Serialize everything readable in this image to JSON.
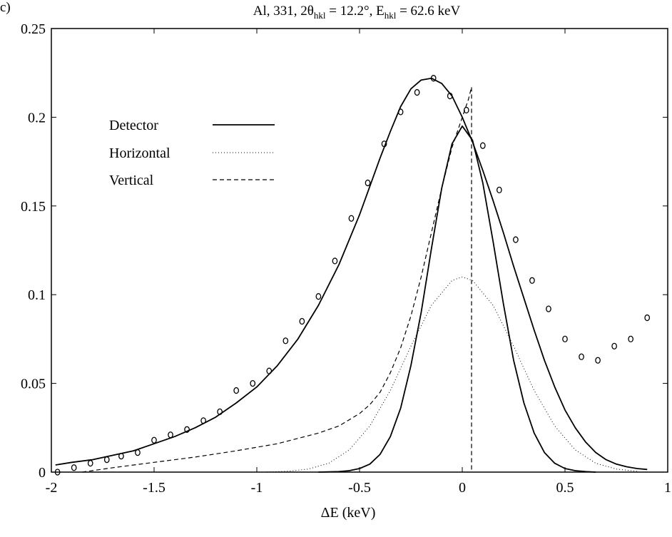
{
  "chart_data": {
    "type": "line",
    "panel_label": "c)",
    "title": {
      "prefix": "Al, 331, 2θ",
      "theta_sub": "hkl",
      "middle": " = 12.2°, E",
      "energy_sub": "hkl",
      "suffix": " = 62.6 keV"
    },
    "xlabel": "ΔE (keV)",
    "ylabel": "",
    "xlim": [
      -2,
      1
    ],
    "ylim": [
      0,
      0.25
    ],
    "xticks": [
      -2,
      -1.5,
      -1,
      -0.5,
      0,
      0.5,
      1
    ],
    "xtick_labels": [
      "-2",
      "-1.5",
      "-1",
      "-0.5",
      "0",
      "0.5",
      "1"
    ],
    "yticks": [
      0,
      0.05,
      0.1,
      0.15,
      0.2,
      0.25
    ],
    "ytick_labels": [
      "0",
      "0.05",
      "0.1",
      "0.15",
      "0.2",
      "0.25"
    ],
    "legend": {
      "position": "upper-left",
      "entries": [
        {
          "label": "Detector",
          "style": "solid"
        },
        {
          "label": "Horizontal",
          "style": "dotted"
        },
        {
          "label": "Vertical",
          "style": "dashed"
        }
      ]
    },
    "series": [
      {
        "name": "",
        "kind": "model-fit",
        "style": "solid",
        "x": [
          -1.98,
          -1.9,
          -1.8,
          -1.7,
          -1.6,
          -1.5,
          -1.4,
          -1.3,
          -1.2,
          -1.1,
          -1.0,
          -0.9,
          -0.8,
          -0.7,
          -0.6,
          -0.5,
          -0.45,
          -0.4,
          -0.35,
          -0.3,
          -0.25,
          -0.2,
          -0.15,
          -0.1,
          -0.05,
          0.0,
          0.05,
          0.1,
          0.15,
          0.2,
          0.25,
          0.3,
          0.35,
          0.4,
          0.45,
          0.5,
          0.55,
          0.6,
          0.65,
          0.7,
          0.75,
          0.8,
          0.85,
          0.9
        ],
        "y": [
          0.004,
          0.0055,
          0.007,
          0.0095,
          0.012,
          0.016,
          0.02,
          0.025,
          0.031,
          0.039,
          0.048,
          0.06,
          0.075,
          0.094,
          0.117,
          0.145,
          0.161,
          0.177,
          0.192,
          0.206,
          0.216,
          0.221,
          0.222,
          0.219,
          0.212,
          0.2,
          0.186,
          0.17,
          0.153,
          0.135,
          0.116,
          0.098,
          0.08,
          0.063,
          0.048,
          0.035,
          0.025,
          0.017,
          0.011,
          0.007,
          0.0045,
          0.003,
          0.002,
          0.0015
        ]
      },
      {
        "name": "Detector",
        "style": "solid",
        "x": [
          -0.7,
          -0.6,
          -0.55,
          -0.5,
          -0.45,
          -0.4,
          -0.35,
          -0.3,
          -0.25,
          -0.2,
          -0.15,
          -0.1,
          -0.05,
          0.0,
          0.05,
          0.1,
          0.15,
          0.2,
          0.25,
          0.3,
          0.35,
          0.4,
          0.45,
          0.5,
          0.55,
          0.6,
          0.65
        ],
        "y": [
          0.0,
          0.0003,
          0.0008,
          0.002,
          0.0045,
          0.01,
          0.02,
          0.036,
          0.06,
          0.09,
          0.126,
          0.16,
          0.185,
          0.195,
          0.187,
          0.163,
          0.13,
          0.095,
          0.063,
          0.039,
          0.022,
          0.011,
          0.005,
          0.002,
          0.0008,
          0.0003,
          0.0
        ]
      },
      {
        "name": "Horizontal",
        "style": "dotted",
        "x": [
          -0.95,
          -0.85,
          -0.75,
          -0.65,
          -0.55,
          -0.45,
          -0.35,
          -0.25,
          -0.15,
          -0.05,
          0.0,
          0.05,
          0.15,
          0.25,
          0.35,
          0.45,
          0.55,
          0.65,
          0.75,
          0.85
        ],
        "y": [
          0.0001,
          0.0005,
          0.0017,
          0.005,
          0.0125,
          0.026,
          0.046,
          0.071,
          0.094,
          0.108,
          0.11,
          0.108,
          0.094,
          0.071,
          0.046,
          0.026,
          0.0125,
          0.005,
          0.0017,
          0.0005
        ]
      },
      {
        "name": "Vertical",
        "style": "dashed",
        "x": [
          -1.85,
          -1.7,
          -1.5,
          -1.3,
          -1.1,
          -0.9,
          -0.8,
          -0.7,
          -0.6,
          -0.5,
          -0.45,
          -0.4,
          -0.35,
          -0.3,
          -0.25,
          -0.2,
          -0.15,
          -0.1,
          -0.05,
          0.0,
          0.03,
          0.045,
          0.045
        ],
        "y": [
          0.0,
          0.0025,
          0.0055,
          0.0085,
          0.012,
          0.016,
          0.019,
          0.022,
          0.026,
          0.033,
          0.038,
          0.045,
          0.056,
          0.07,
          0.088,
          0.11,
          0.135,
          0.16,
          0.183,
          0.2,
          0.21,
          0.217,
          0.0
        ]
      },
      {
        "name": "",
        "kind": "measured",
        "style": "markers",
        "x": [
          -1.97,
          -1.89,
          -1.81,
          -1.73,
          -1.66,
          -1.58,
          -1.5,
          -1.42,
          -1.34,
          -1.26,
          -1.18,
          -1.1,
          -1.02,
          -0.94,
          -0.86,
          -0.78,
          -0.7,
          -0.62,
          -0.54,
          -0.46,
          -0.38,
          -0.3,
          -0.22,
          -0.14,
          -0.06,
          0.02,
          0.1,
          0.18,
          0.26,
          0.34,
          0.42,
          0.5,
          0.58,
          0.66,
          0.74,
          0.82,
          0.9
        ],
        "y": [
          0.0,
          0.0025,
          0.005,
          0.007,
          0.009,
          0.011,
          0.018,
          0.021,
          0.024,
          0.029,
          0.034,
          0.046,
          0.05,
          0.057,
          0.074,
          0.085,
          0.099,
          0.119,
          0.143,
          0.163,
          0.185,
          0.203,
          0.214,
          0.222,
          0.212,
          0.204,
          0.184,
          0.159,
          0.131,
          0.108,
          0.092,
          0.075,
          0.065,
          0.063,
          0.071,
          0.075,
          0.087
        ]
      }
    ]
  }
}
